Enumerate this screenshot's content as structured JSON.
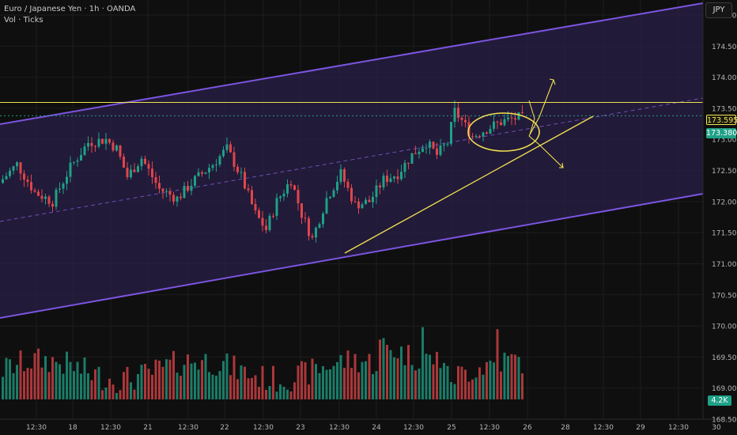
{
  "header": {
    "symbol_line": "Euro / Japanese Yen · 1h · OANDA",
    "indicator_line": "Vol · Ticks"
  },
  "currency_button": "JPY",
  "badges": {
    "level": "173.595",
    "last": "173.380",
    "volume": "4.2K"
  },
  "colors": {
    "background": "#0f0f0f",
    "up": "#1fa187",
    "down": "#e0454a",
    "channel": "#7b55e0",
    "annotation": "#f3e24f"
  },
  "chart_data": {
    "type": "candlestick",
    "price_axis": {
      "ylim": [
        168.5,
        175.0
      ],
      "ticks": [
        "175.000",
        "174.500",
        "174.000",
        "173.500",
        "173.000",
        "172.500",
        "172.000",
        "171.500",
        "171.000",
        "170.500",
        "170.000",
        "169.500",
        "169.000",
        "168.500"
      ]
    },
    "time_axis": {
      "labels": [
        "12:30",
        "18",
        "12:30",
        "21",
        "12:30",
        "22",
        "12:30",
        "23",
        "12:30",
        "24",
        "12:30",
        "25",
        "12:30",
        "26",
        "28",
        "12:30",
        "29",
        "12:30",
        "30"
      ]
    },
    "series": [
      {
        "name": "candles",
        "points": 150,
        "trend": "ascending channel"
      },
      {
        "name": "volume"
      }
    ],
    "annotations": {
      "horizontal_level": 173.595,
      "last_price": 173.38,
      "channel": "ascending parallel channel with midline",
      "trendline": "rising support from 171.3",
      "circle": "consolidation near 173.4",
      "arrows": [
        "breakout up",
        "breakdown down"
      ]
    },
    "grid": true,
    "legend": "none"
  }
}
